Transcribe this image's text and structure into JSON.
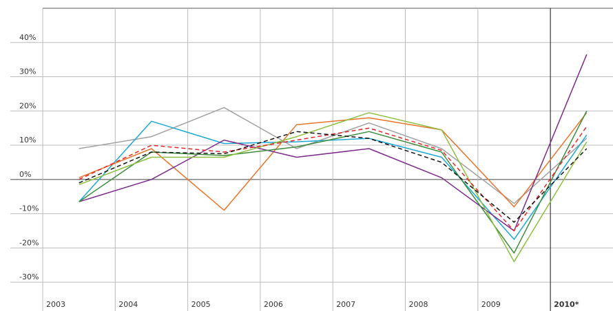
{
  "chart_data": {
    "type": "line",
    "categories": [
      "2003",
      "2004",
      "2005",
      "2006",
      "2007",
      "2008",
      "2009",
      "2010*"
    ],
    "ylim": [
      -35,
      50
    ],
    "yticks": [
      {
        "value": -30,
        "label": "-30%"
      },
      {
        "value": -20,
        "label": "-20%"
      },
      {
        "value": -10,
        "label": "-10%"
      },
      {
        "value": 0,
        "label": "0%"
      },
      {
        "value": 10,
        "label": "10%"
      },
      {
        "value": 20,
        "label": "20%"
      },
      {
        "value": 30,
        "label": "30%"
      },
      {
        "value": 40,
        "label": "40%"
      }
    ],
    "grid": true,
    "series": [
      {
        "color": "#a0a0a0",
        "values": [
          9,
          12.5,
          21,
          9,
          16.5,
          9,
          -7,
          12
        ]
      },
      {
        "color": "#1ba8d5",
        "values": [
          -6.5,
          17,
          10.5,
          11,
          12,
          6.5,
          -17.5,
          13
        ]
      },
      {
        "color": "#e8742a",
        "values": [
          0.5,
          9,
          -9,
          16,
          18,
          14.5,
          -8,
          19.5
        ]
      },
      {
        "color": "#7b2a8a",
        "values": [
          -6.5,
          0,
          11.5,
          6.5,
          9,
          0.5,
          -15,
          36.5
        ]
      },
      {
        "color": "#3c8c3c",
        "values": [
          -6.5,
          8,
          7,
          9.5,
          14,
          8,
          -21.5,
          20
        ]
      },
      {
        "color": "#8cbf3f",
        "values": [
          -1.5,
          6.5,
          6.5,
          12.5,
          19.5,
          14.5,
          -24,
          11
        ]
      },
      {
        "color": "#e3262c",
        "dashed": true,
        "values": [
          0,
          10,
          8,
          11.5,
          15,
          8.5,
          -15,
          15.5
        ]
      },
      {
        "color": "#111111",
        "dashed": true,
        "values": [
          -1,
          8,
          7.5,
          14,
          12,
          5,
          -12.5,
          9
        ]
      }
    ]
  }
}
